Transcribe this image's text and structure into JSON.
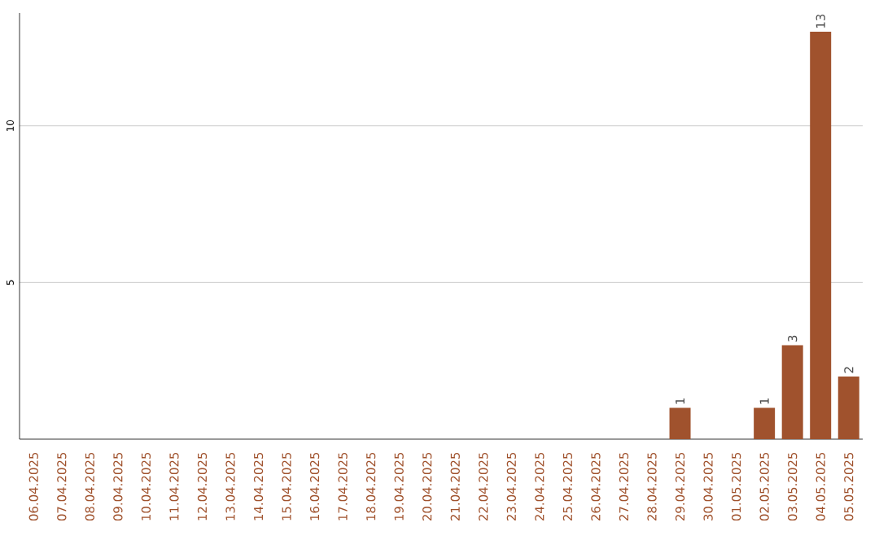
{
  "chart_data": {
    "type": "bar",
    "categories": [
      "06.04.2025",
      "07.04.2025",
      "08.04.2025",
      "09.04.2025",
      "10.04.2025",
      "11.04.2025",
      "12.04.2025",
      "13.04.2025",
      "14.04.2025",
      "15.04.2025",
      "16.04.2025",
      "17.04.2025",
      "18.04.2025",
      "19.04.2025",
      "20.04.2025",
      "21.04.2025",
      "22.04.2025",
      "23.04.2025",
      "24.04.2025",
      "25.04.2025",
      "26.04.2025",
      "27.04.2025",
      "28.04.2025",
      "29.04.2025",
      "30.04.2025",
      "01.05.2025",
      "02.05.2025",
      "03.05.2025",
      "04.05.2025",
      "05.05.2025"
    ],
    "values": [
      0,
      0,
      0,
      0,
      0,
      0,
      0,
      0,
      0,
      0,
      0,
      0,
      0,
      0,
      0,
      0,
      0,
      0,
      0,
      0,
      0,
      0,
      0,
      1,
      0,
      0,
      1,
      3,
      13,
      2
    ],
    "value_labels": [
      null,
      null,
      null,
      null,
      null,
      null,
      null,
      null,
      null,
      null,
      null,
      null,
      null,
      null,
      null,
      null,
      null,
      null,
      null,
      null,
      null,
      null,
      null,
      "1",
      null,
      null,
      "1",
      "3",
      "13",
      "2"
    ],
    "color": "#a0522d",
    "ylim": [
      0,
      13.6
    ],
    "yticks": [
      5,
      10
    ],
    "grid": "y"
  }
}
